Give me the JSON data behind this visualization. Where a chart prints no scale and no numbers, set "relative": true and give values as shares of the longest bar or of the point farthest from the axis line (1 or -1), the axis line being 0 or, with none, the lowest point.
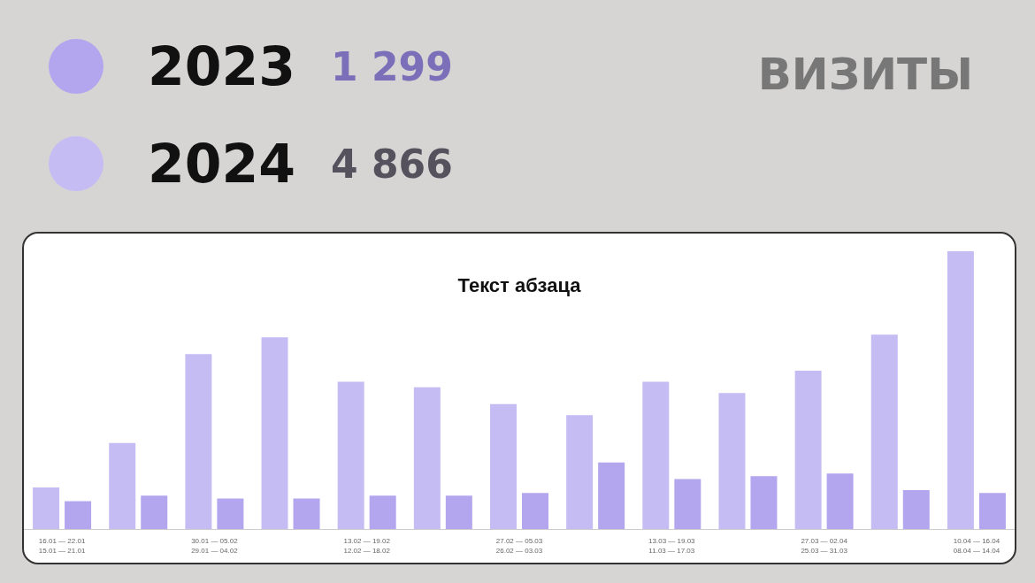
{
  "chart_data": {
    "type": "bar",
    "title": "Текст абзаца",
    "annotations": [
      "ВИЗИТЫ",
      "1 299",
      "4 866"
    ],
    "categories": [
      "16.01 — 22.01\n15.01 — 21.01",
      null,
      "30.01 — 05.02\n29.01 — 04.02",
      null,
      "13.02 — 19.02\n12.02 — 18.02",
      null,
      "27.02 — 05.03\n26.02 — 03.03",
      null,
      "13.03 — 19.03\n11.03 — 17.03",
      null,
      "27.03 — 02.04\n25.03 — 31.03",
      null,
      "10.04 — 16.04\n08.04 — 14.04"
    ],
    "series": [
      {
        "name": "2024",
        "color": "#c6bcf4",
        "values": [
          0.15,
          0.31,
          0.63,
          0.69,
          0.53,
          0.51,
          0.45,
          0.41,
          0.53,
          0.49,
          0.57,
          0.7,
          1
        ]
      },
      {
        "name": "2023",
        "color": "#b3a6ef",
        "values": [
          0.1,
          0.12,
          0.11,
          0.11,
          0.12,
          0.12,
          0.13,
          0.24,
          0.18,
          0.19,
          0.2,
          0.14,
          0.13
        ]
      }
    ],
    "relative": true,
    "legend": "top left"
  }
}
